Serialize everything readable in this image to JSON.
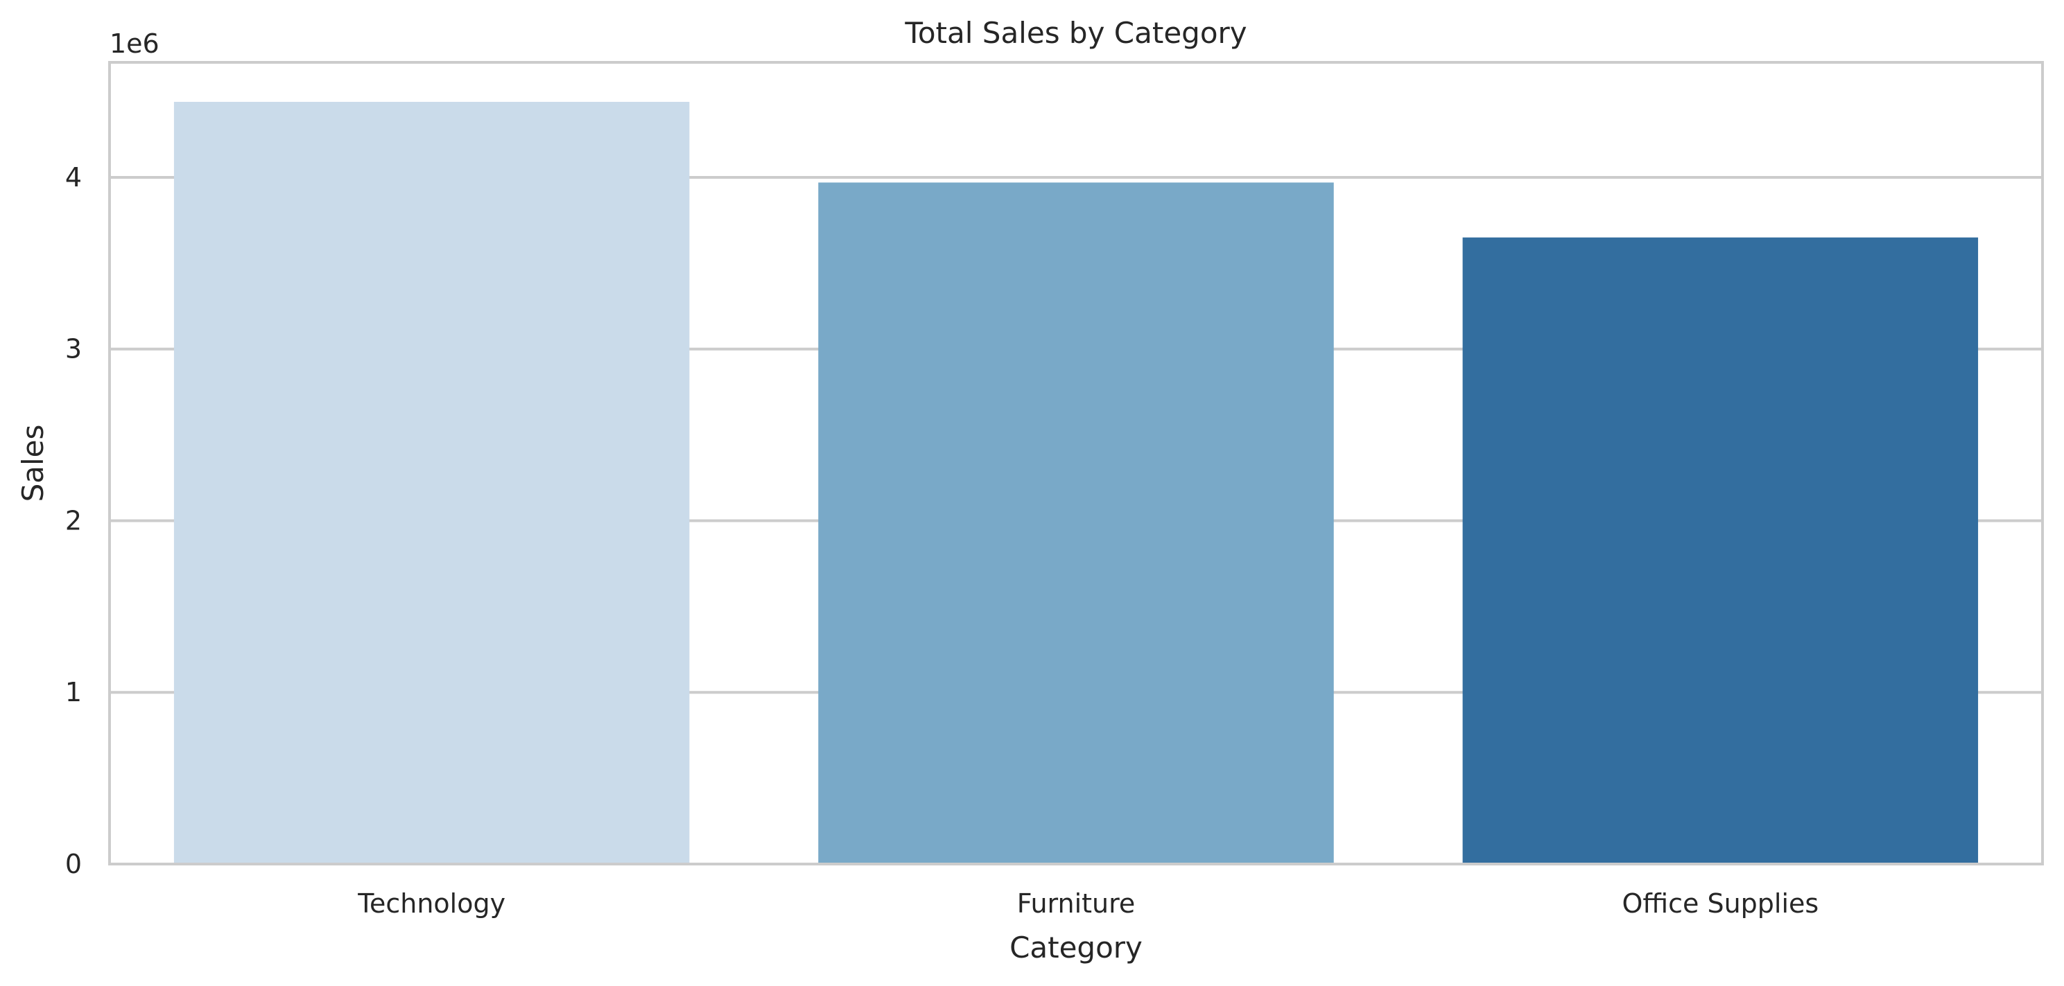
{
  "chart_data": {
    "type": "bar",
    "title": "Total Sales by Category",
    "xlabel": "Category",
    "ylabel": "Sales",
    "y_offset_label": "1e6",
    "categories": [
      "Technology",
      "Furniture",
      "Office Supplies"
    ],
    "values": [
      4440000,
      3970000,
      3650000
    ],
    "colors": [
      "#cadbea",
      "#79a9c8",
      "#336e9f"
    ],
    "ylim": [
      0,
      4670000
    ],
    "yticks": [
      0,
      1000000,
      2000000,
      3000000,
      4000000
    ],
    "ytick_labels": [
      "0",
      "1",
      "2",
      "3",
      "4"
    ],
    "grid": "horizontal",
    "legend": "none"
  }
}
